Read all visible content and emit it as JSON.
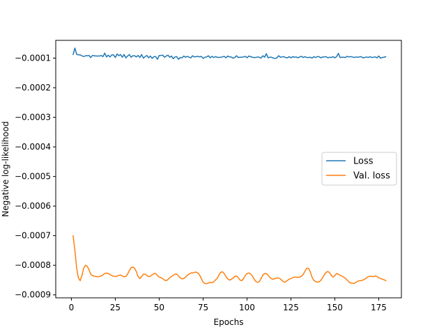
{
  "chart_data": {
    "type": "line",
    "title": "",
    "xlabel": "Epochs",
    "ylabel": "Negative log-likelihood",
    "xlim": [
      -8.9,
      187.9
    ],
    "ylim": [
      -0.00091,
      -4e-05
    ],
    "xticks": [
      0,
      25,
      50,
      75,
      100,
      125,
      150,
      175
    ],
    "xtick_labels": [
      "0",
      "25",
      "50",
      "75",
      "100",
      "125",
      "150",
      "175"
    ],
    "yticks": [
      -0.0001,
      -0.0002,
      -0.0003,
      -0.0004,
      -0.0005,
      -0.0006,
      -0.0007,
      -0.0008,
      -0.0009
    ],
    "ytick_labels": [
      "−0.0001",
      "−0.0002",
      "−0.0003",
      "−0.0004",
      "−0.0005",
      "−0.0006",
      "−0.0007",
      "−0.0008",
      "−0.0009"
    ],
    "grid": false,
    "legend_position": "center-right",
    "series": [
      {
        "name": "Loss",
        "color": "#1f77b4",
        "x": [
          1,
          2,
          3,
          4,
          5,
          6,
          7,
          8,
          9,
          10,
          11,
          12,
          13,
          14,
          15,
          16,
          17,
          18,
          19,
          20,
          21,
          22,
          23,
          24,
          25,
          26,
          27,
          28,
          29,
          30,
          31,
          32,
          33,
          34,
          35,
          36,
          37,
          38,
          39,
          40,
          41,
          42,
          43,
          44,
          45,
          46,
          47,
          48,
          49,
          50,
          51,
          52,
          53,
          54,
          55,
          56,
          57,
          58,
          59,
          60,
          61,
          62,
          63,
          64,
          65,
          66,
          67,
          68,
          69,
          70,
          71,
          72,
          73,
          74,
          75,
          76,
          77,
          78,
          79,
          80,
          81,
          82,
          83,
          84,
          85,
          86,
          87,
          88,
          89,
          90,
          91,
          92,
          93,
          94,
          95,
          96,
          97,
          98,
          99,
          100,
          101,
          102,
          103,
          104,
          105,
          106,
          107,
          108,
          109,
          110,
          111,
          112,
          113,
          114,
          115,
          116,
          117,
          118,
          119,
          120,
          121,
          122,
          123,
          124,
          125,
          126,
          127,
          128,
          129,
          130,
          131,
          132,
          133,
          134,
          135,
          136,
          137,
          138,
          139,
          140,
          141,
          142,
          143,
          144,
          145,
          146,
          147,
          148,
          149,
          150,
          151,
          152,
          153,
          154,
          155,
          156,
          157,
          158,
          159,
          160,
          161,
          162,
          163,
          164,
          165,
          166,
          167,
          168,
          169,
          170,
          171,
          172,
          173,
          174,
          175,
          176,
          177,
          178,
          179
        ],
        "y": [
          -8.8e-05,
          -6.6e-05,
          -8.7e-05,
          -8.9e-05,
          -8.9e-05,
          -9.2e-05,
          -9.5e-05,
          -9.2e-05,
          -9.2e-05,
          -9.1e-05,
          -9.8e-05,
          -9.1e-05,
          -9.2e-05,
          -9.3e-05,
          -9.3e-05,
          -9.3e-05,
          -9.1e-05,
          -9.5e-05,
          -8.3e-05,
          -9.6e-05,
          -9e-05,
          -9.6e-05,
          -8.9e-05,
          -8.9e-05,
          -9.8e-05,
          -8.6e-05,
          -9.2e-05,
          -8.8e-05,
          -9.7e-05,
          -8.8e-05,
          -9.9e-05,
          -9.3e-05,
          -8.8e-05,
          -9.7e-05,
          -9.2e-05,
          -9.2e-05,
          -9.6e-05,
          -9.1e-05,
          -9.8e-05,
          -8.8e-05,
          -0.0001,
          -9.5e-05,
          -9.1e-05,
          -9.9e-05,
          -9.3e-05,
          -0.000101,
          -9.5e-05,
          -9.5e-05,
          -0.000104,
          -9.1e-05,
          -9.1e-05,
          -9e-05,
          -9.7e-05,
          -9.3e-05,
          -9e-05,
          -9.7e-05,
          -9.3e-05,
          -0.000102,
          -9.6e-05,
          -9.5e-05,
          -0.000104,
          -9.8e-05,
          -9.9e-05,
          -9.3e-05,
          -9.7e-05,
          -9.4e-05,
          -9.7e-05,
          -9.9e-05,
          -9.2e-05,
          -9.6e-05,
          -9.5e-05,
          -9.4e-05,
          -9.6e-05,
          -9.4e-05,
          -0.000101,
          -9.7e-05,
          -9.6e-05,
          -9.2e-05,
          -9.9e-05,
          -9.4e-05,
          -9.8e-05,
          -9.5e-05,
          -9.7e-05,
          -9.8e-05,
          -9.7e-05,
          -9.6e-05,
          -9.4e-05,
          -9.9e-05,
          -9.3e-05,
          -9.6e-05,
          -9.6e-05,
          -0.0001,
          -9.8e-05,
          -9.2e-05,
          -9.8e-05,
          -9.7e-05,
          -9.7e-05,
          -9.6e-05,
          -9.4e-05,
          -9.9e-05,
          -9.3e-05,
          -9.5e-05,
          -9.7e-05,
          -9.8e-05,
          -9.8e-05,
          -9.6e-05,
          -9.7e-05,
          -0.0001,
          -9.2e-05,
          -9.7e-05,
          -8.5e-05,
          -9.9e-05,
          -9.7e-05,
          -9.7e-05,
          -0.0001,
          -0.000101,
          -9.9e-05,
          -9.2e-05,
          -9.7e-05,
          -9.6e-05,
          -9.5e-05,
          -9.8e-05,
          -9.9e-05,
          -9.5e-05,
          -9.9e-05,
          -9.5e-05,
          -9.7e-05,
          -9.6e-05,
          -9.9e-05,
          -9.6e-05,
          -9.4e-05,
          -9.8e-05,
          -9.5e-05,
          -9.8e-05,
          -9.8e-05,
          -9.7e-05,
          -0.0001,
          -9.5e-05,
          -9.8e-05,
          -9.5e-05,
          -9.5e-05,
          -9.9e-05,
          -9.6e-05,
          -9.6e-05,
          -9.5e-05,
          -9.9e-05,
          -9.7e-05,
          -9.8e-05,
          -9.5e-05,
          -9.9e-05,
          -9.5e-05,
          -8.4e-05,
          -9.8e-05,
          -9.7e-05,
          -9.7e-05,
          -9.8e-05,
          -9.4e-05,
          -9.6e-05,
          -9.5e-05,
          -9.6e-05,
          -9.8e-05,
          -9.6e-05,
          -9.7e-05,
          -9.6e-05,
          -9.5e-05,
          -9.9e-05,
          -9.8e-05,
          -9.6e-05,
          -9.8e-05,
          -9.5e-05,
          -9.8e-05,
          -9.7e-05,
          -9.6e-05,
          -9.9e-05,
          -9.3e-05,
          -0.0001,
          -9.8e-05,
          -9.7e-05,
          -9.5e-05
        ]
      },
      {
        "name": "Val. loss",
        "color": "#ff7f0e",
        "x": [
          1,
          2,
          3,
          4,
          5,
          6,
          7,
          8,
          9,
          10,
          11,
          12,
          13,
          14,
          15,
          16,
          17,
          18,
          19,
          20,
          21,
          22,
          23,
          24,
          25,
          26,
          27,
          28,
          29,
          30,
          31,
          32,
          33,
          34,
          35,
          36,
          37,
          38,
          39,
          40,
          41,
          42,
          43,
          44,
          45,
          46,
          47,
          48,
          49,
          50,
          51,
          52,
          53,
          54,
          55,
          56,
          57,
          58,
          59,
          60,
          61,
          62,
          63,
          64,
          65,
          66,
          67,
          68,
          69,
          70,
          71,
          72,
          73,
          74,
          75,
          76,
          77,
          78,
          79,
          80,
          81,
          82,
          83,
          84,
          85,
          86,
          87,
          88,
          89,
          90,
          91,
          92,
          93,
          94,
          95,
          96,
          97,
          98,
          99,
          100,
          101,
          102,
          103,
          104,
          105,
          106,
          107,
          108,
          109,
          110,
          111,
          112,
          113,
          114,
          115,
          116,
          117,
          118,
          119,
          120,
          121,
          122,
          123,
          124,
          125,
          126,
          127,
          128,
          129,
          130,
          131,
          132,
          133,
          134,
          135,
          136,
          137,
          138,
          139,
          140,
          141,
          142,
          143,
          144,
          145,
          146,
          147,
          148,
          149,
          150,
          151,
          152,
          153,
          154,
          155,
          156,
          157,
          158,
          159,
          160,
          161,
          162,
          163,
          164,
          165,
          166,
          167,
          168,
          169,
          170,
          171,
          172,
          173,
          174,
          175,
          176,
          177,
          178,
          179
        ],
        "y": [
          -0.0007,
          -0.00075,
          -0.00081,
          -0.000843,
          -0.000852,
          -0.000835,
          -0.00081,
          -0.0008,
          -0.000803,
          -0.000815,
          -0.00083,
          -0.000835,
          -0.000837,
          -0.000838,
          -0.000839,
          -0.000838,
          -0.000836,
          -0.000832,
          -0.000828,
          -0.000826,
          -0.000828,
          -0.000831,
          -0.000835,
          -0.000837,
          -0.000838,
          -0.000837,
          -0.000834,
          -0.000833,
          -0.000836,
          -0.000839,
          -0.000838,
          -0.00083,
          -0.000818,
          -0.000808,
          -0.000806,
          -0.00081,
          -0.000822,
          -0.000838,
          -0.000845,
          -0.000838,
          -0.00083,
          -0.00083,
          -0.000835,
          -0.000838,
          -0.000837,
          -0.000832,
          -0.000828,
          -0.000828,
          -0.000835,
          -0.00084,
          -0.000842,
          -0.000845,
          -0.00085,
          -0.000852,
          -0.000848,
          -0.000842,
          -0.000838,
          -0.000834,
          -0.00083,
          -0.00083,
          -0.000836,
          -0.000843,
          -0.000846,
          -0.000845,
          -0.00084,
          -0.000834,
          -0.00083,
          -0.000826,
          -0.000826,
          -0.000824,
          -0.000823,
          -0.000826,
          -0.000833,
          -0.000845,
          -0.000857,
          -0.000862,
          -0.000862,
          -0.00086,
          -0.000858,
          -0.000859,
          -0.000856,
          -0.00085,
          -0.000845,
          -0.000833,
          -0.000824,
          -0.000822,
          -0.000828,
          -0.000838,
          -0.000846,
          -0.00085,
          -0.000848,
          -0.000843,
          -0.000838,
          -0.000836,
          -0.000842,
          -0.00085,
          -0.000852,
          -0.000845,
          -0.000835,
          -0.000828,
          -0.000826,
          -0.000829,
          -0.000836,
          -0.000846,
          -0.000855,
          -0.000858,
          -0.000855,
          -0.000845,
          -0.000833,
          -0.000828,
          -0.000828,
          -0.000834,
          -0.000841,
          -0.000846,
          -0.000847,
          -0.000845,
          -0.000843,
          -0.000843,
          -0.000846,
          -0.000852,
          -0.000857,
          -0.000856,
          -0.000851,
          -0.000847,
          -0.000845,
          -0.000842,
          -0.00084,
          -0.00084,
          -0.000841,
          -0.00084,
          -0.000837,
          -0.000831,
          -0.00082,
          -0.00081,
          -0.00081,
          -0.000822,
          -0.00084,
          -0.000851,
          -0.000855,
          -0.000857,
          -0.000856,
          -0.000851,
          -0.000842,
          -0.000832,
          -0.000824,
          -0.000821,
          -0.000825,
          -0.000834,
          -0.00084,
          -0.000835,
          -0.000828,
          -0.00083,
          -0.000834,
          -0.000836,
          -0.00084,
          -0.000844,
          -0.00085,
          -0.000856,
          -0.00086,
          -0.000861,
          -0.000861,
          -0.000858,
          -0.000854,
          -0.000852,
          -0.000852,
          -0.00085,
          -0.000847,
          -0.000843,
          -0.000839,
          -0.000837,
          -0.000838,
          -0.000838,
          -0.000836,
          -0.000838,
          -0.000842,
          -0.000845,
          -0.000847,
          -0.000849,
          -0.000852
        ]
      }
    ]
  }
}
